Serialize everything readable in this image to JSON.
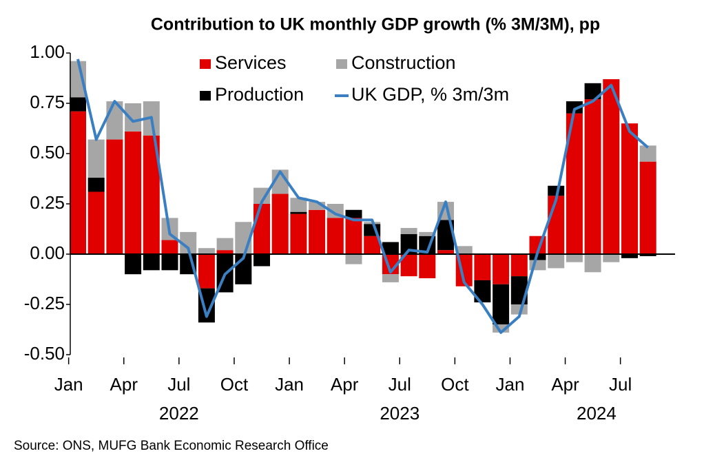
{
  "chart_data": {
    "type": "stacked_bar_line",
    "title": "Contribution to UK monthly GDP growth (% 3M/3M), pp",
    "source": "Source: ONS, MUFG Bank Economic Research Office",
    "categories": [
      "Jan",
      null,
      null,
      "Apr",
      null,
      null,
      "Jul",
      null,
      null,
      "Oct",
      null,
      null,
      "Jan",
      null,
      null,
      "Apr",
      null,
      null,
      "Jul",
      null,
      null,
      "Oct",
      null,
      null,
      "Jan",
      null,
      null,
      "Apr",
      null,
      null,
      "Jul",
      null
    ],
    "year_labels": [
      "2022",
      "2023",
      "2024"
    ],
    "ylim": [
      -0.5,
      1.0
    ],
    "yticks": [
      {
        "value": 1.0,
        "label": "1.00"
      },
      {
        "value": 0.75,
        "label": "0.75"
      },
      {
        "value": 0.5,
        "label": "0.50"
      },
      {
        "value": 0.25,
        "label": "0.25"
      },
      {
        "value": 0,
        "label": "0.00"
      },
      {
        "value": -0.25,
        "label": "-0.25"
      },
      {
        "value": -0.5,
        "label": "-0.50"
      }
    ],
    "series": [
      {
        "name": "Services",
        "color": "#e00000",
        "kind": "bar",
        "values": [
          0.71,
          0.31,
          0.57,
          0.61,
          0.59,
          0.07,
          0,
          -0.17,
          0.02,
          0,
          0.25,
          0.3,
          0.2,
          0.22,
          0.18,
          0.18,
          0.09,
          -0.1,
          -0.11,
          -0.12,
          0.02,
          -0.16,
          -0.13,
          -0.15,
          -0.11,
          0.09,
          0.29,
          0.7,
          0.77,
          0.87,
          0.65,
          0.46
        ]
      },
      {
        "name": "Production",
        "color": "#000000",
        "kind": "bar",
        "values": [
          0.07,
          0.07,
          0,
          -0.1,
          -0.08,
          -0.08,
          -0.1,
          -0.17,
          -0.19,
          -0.15,
          -0.06,
          0,
          0.01,
          0,
          0,
          0.04,
          0.06,
          0.06,
          0.1,
          0.09,
          0.15,
          0,
          -0.11,
          -0.2,
          -0.14,
          -0.03,
          0.05,
          0.06,
          0.08,
          0,
          -0.02,
          -0.01
        ]
      },
      {
        "name": "Construction",
        "color": "#a6a6a6",
        "kind": "bar",
        "values": [
          0.18,
          0.19,
          0.19,
          0.14,
          0.17,
          0.11,
          0.11,
          0.03,
          0.06,
          0.16,
          0.08,
          0.12,
          0.07,
          0.04,
          0.07,
          -0.05,
          0.01,
          -0.04,
          0.03,
          0.02,
          0.09,
          0.04,
          0,
          -0.04,
          -0.05,
          -0.05,
          -0.07,
          -0.04,
          -0.09,
          -0.04,
          0,
          0.08
        ]
      },
      {
        "name": "UK GDP, % 3m/3m",
        "color": "#3a7fc1",
        "kind": "line",
        "values": [
          0.97,
          0.57,
          0.76,
          0.66,
          0.68,
          0.1,
          0.03,
          -0.31,
          -0.1,
          -0.02,
          0.26,
          0.41,
          0.28,
          0.26,
          0.2,
          0.17,
          0.17,
          -0.09,
          0.02,
          0.01,
          0.26,
          -0.14,
          -0.25,
          -0.39,
          -0.31,
          0.01,
          0.27,
          0.72,
          0.76,
          0.84,
          0.61,
          0.53
        ]
      }
    ]
  }
}
